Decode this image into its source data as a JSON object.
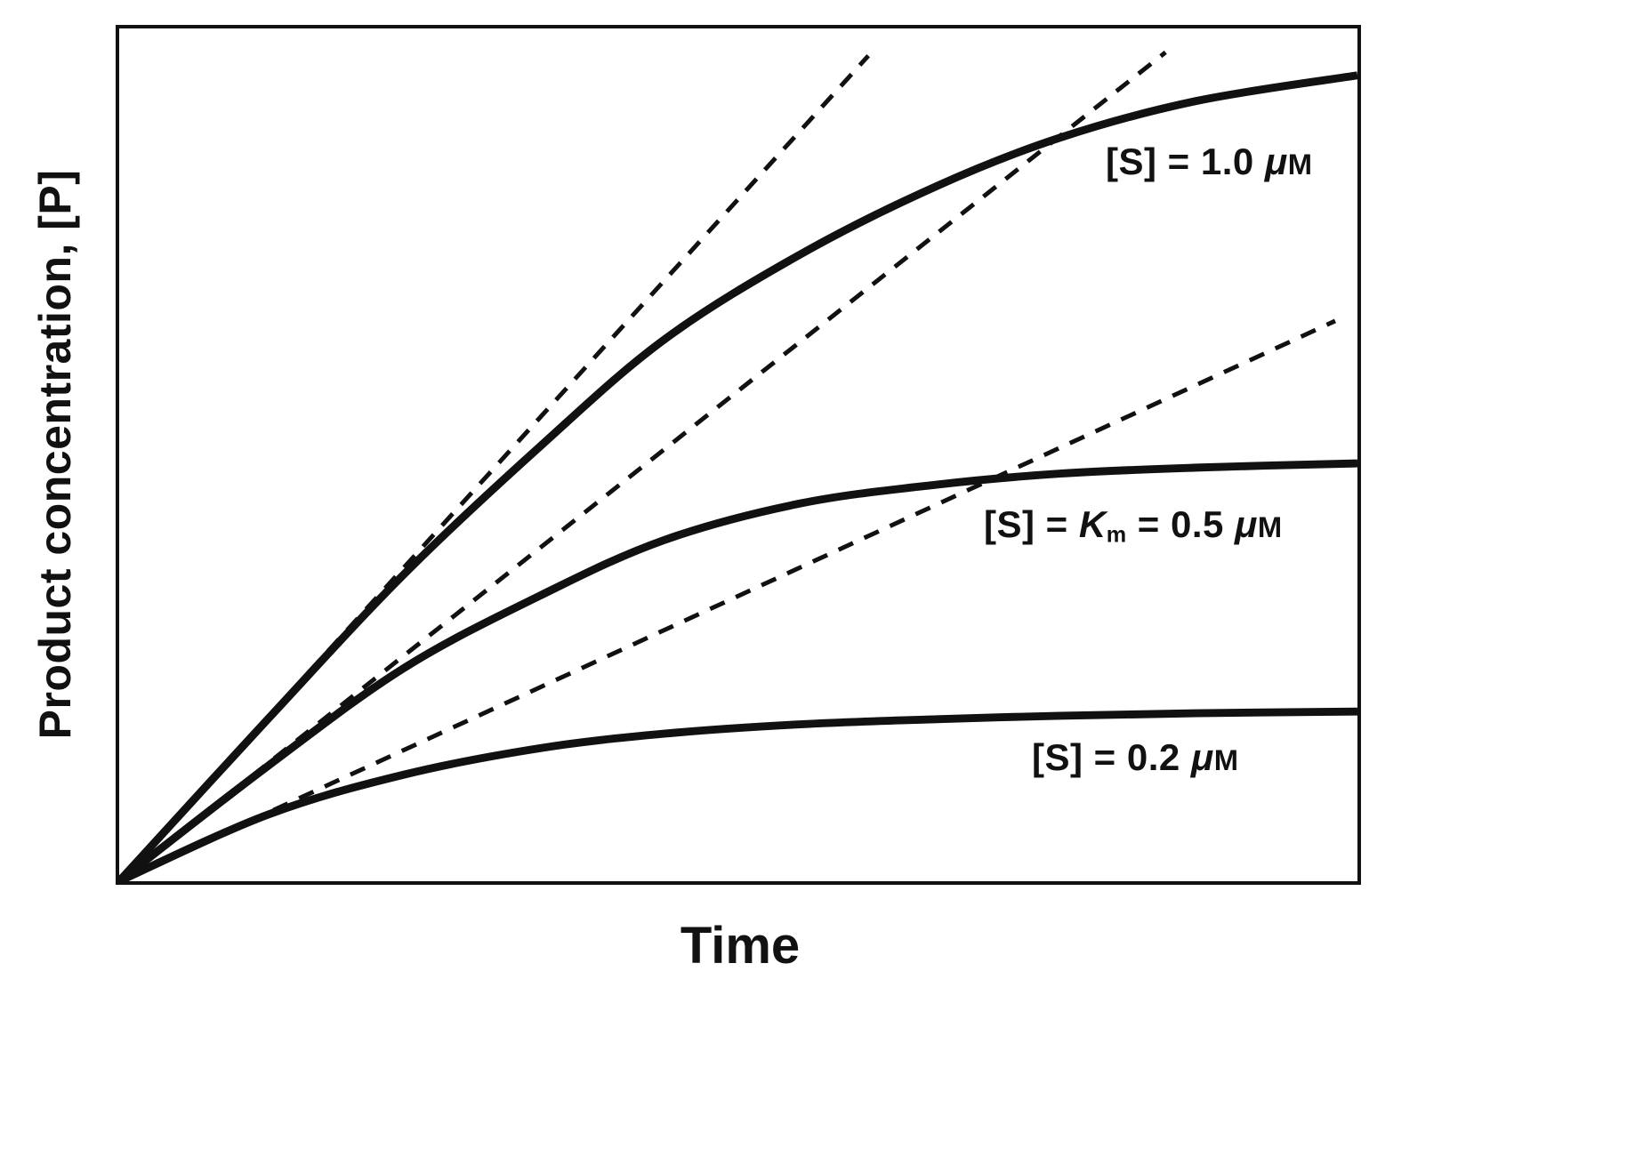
{
  "chart_data": {
    "type": "line",
    "title": "",
    "xlabel": "Time",
    "ylabel": "Product concentration, [P]",
    "x_range": [
      0,
      1
    ],
    "y_range": [
      0,
      1
    ],
    "axes_numeric_ticks": false,
    "grid": false,
    "legend": "none (labels placed beside curves)",
    "line_color": "#111111",
    "series": [
      {
        "name": "initial velocity tangent for [S] = 1.0 μM",
        "role": "initial-rate-tangent-1.0uM",
        "line_style": "dashed",
        "points": [
          [
            0,
            0
          ],
          [
            0.605,
            0.968
          ]
        ]
      },
      {
        "name": "initial velocity tangent for [S] = Km = 0.5 μM",
        "role": "initial-rate-tangent-0.5uM",
        "line_style": "dashed",
        "points": [
          [
            0,
            0
          ],
          [
            0.845,
            0.972
          ]
        ]
      },
      {
        "name": "initial velocity tangent for [S] = 0.2 μM",
        "role": "initial-rate-tangent-0.2uM",
        "line_style": "dashed",
        "points": [
          [
            0,
            0
          ],
          [
            0.982,
            0.657
          ]
        ]
      },
      {
        "name": "[S] = 1.0 μM progress curve",
        "role": "progress-curve-1.0uM",
        "line_style": "solid",
        "points": [
          [
            0,
            0
          ],
          [
            0.12,
            0.19
          ],
          [
            0.23,
            0.36
          ],
          [
            0.34,
            0.51
          ],
          [
            0.44,
            0.635
          ],
          [
            0.55,
            0.735
          ],
          [
            0.66,
            0.815
          ],
          [
            0.76,
            0.872
          ],
          [
            0.87,
            0.915
          ],
          [
            1.0,
            0.945
          ]
        ]
      },
      {
        "name": "[S] = Km = 0.5 μM progress curve",
        "role": "progress-curve-0.5uM",
        "line_style": "solid",
        "points": [
          [
            0,
            0
          ],
          [
            0.12,
            0.135
          ],
          [
            0.23,
            0.25
          ],
          [
            0.34,
            0.335
          ],
          [
            0.44,
            0.4
          ],
          [
            0.55,
            0.443
          ],
          [
            0.66,
            0.465
          ],
          [
            0.76,
            0.478
          ],
          [
            0.87,
            0.485
          ],
          [
            1.0,
            0.49
          ]
        ]
      },
      {
        "name": "[S] = 0.2 μM progress curve",
        "role": "progress-curve-0.2uM",
        "line_style": "solid",
        "points": [
          [
            0,
            0
          ],
          [
            0.12,
            0.078
          ],
          [
            0.23,
            0.125
          ],
          [
            0.34,
            0.156
          ],
          [
            0.44,
            0.173
          ],
          [
            0.55,
            0.184
          ],
          [
            0.66,
            0.19
          ],
          [
            0.76,
            0.194
          ],
          [
            0.87,
            0.197
          ],
          [
            1.0,
            0.199
          ]
        ]
      }
    ],
    "annotations": [
      {
        "id": "label-s10",
        "x": 0.8,
        "y": 0.84,
        "text": "[S] = 1.0 μM",
        "parts": {
          "pre": "[S] = 1.0 ",
          "mu": "μ",
          "unit": "M"
        }
      },
      {
        "id": "label-s05",
        "x": 0.7,
        "y": 0.4,
        "text": "[S] = Km = 0.5 μM",
        "parts": {
          "pre": "[S] = ",
          "k": "K",
          "ksub": "m",
          "mid": " = 0.5 ",
          "mu": "μ",
          "unit": "M"
        }
      },
      {
        "id": "label-s02",
        "x": 0.74,
        "y": 0.145,
        "text": "[S] = 0.2 μM",
        "parts": {
          "pre": "[S] = 0.2 ",
          "mu": "μ",
          "unit": "M"
        }
      }
    ]
  }
}
